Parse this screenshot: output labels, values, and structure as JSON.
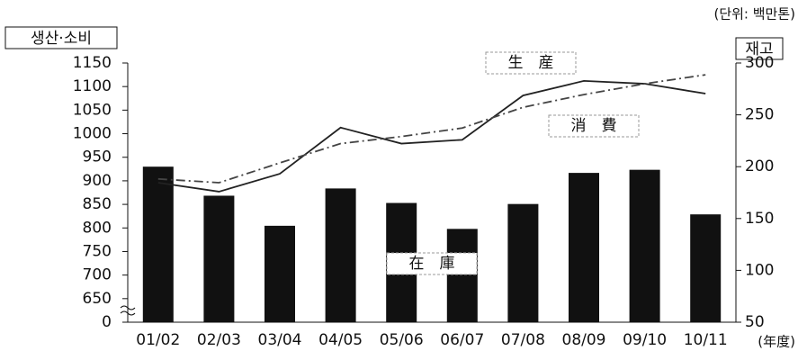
{
  "chart_data": {
    "type": "bar_line",
    "unit": "(단위: 백만톤)",
    "y_label": "생산·소비",
    "y2_label": "재고",
    "x_unit": "(年度)",
    "categories": [
      "01/02",
      "02/03",
      "03/04",
      "04/05",
      "05/06",
      "06/07",
      "07/08",
      "08/09",
      "09/10",
      "10/11"
    ],
    "series": [
      {
        "name": "在　庫",
        "type": "bar",
        "axis": "y2",
        "color": "#111111",
        "values": [
          200,
          172,
          143,
          179,
          165,
          140,
          164,
          194,
          197,
          154
        ]
      },
      {
        "name": "生　産",
        "type": "line",
        "axis": "y",
        "color": "#222222",
        "linestyle": "solid",
        "values": [
          896,
          877,
          915,
          1013,
          979,
          987,
          1081,
          1112,
          1106,
          1085
        ]
      },
      {
        "name": "消　費",
        "type": "line",
        "axis": "y",
        "color": "#444444",
        "linestyle": "dashdot",
        "values": [
          904,
          896,
          938,
          979,
          994,
          1012,
          1056,
          1083,
          1106,
          1125
        ]
      }
    ],
    "ylim": [
      600,
      1150
    ],
    "yticks": [
      {
        "value": 600,
        "label": "0"
      },
      650,
      700,
      750,
      800,
      850,
      900,
      950,
      1000,
      1050,
      1100,
      1150
    ],
    "y2lim": [
      50,
      300
    ],
    "y2ticks": [
      50,
      100,
      150,
      200,
      250,
      300
    ]
  }
}
